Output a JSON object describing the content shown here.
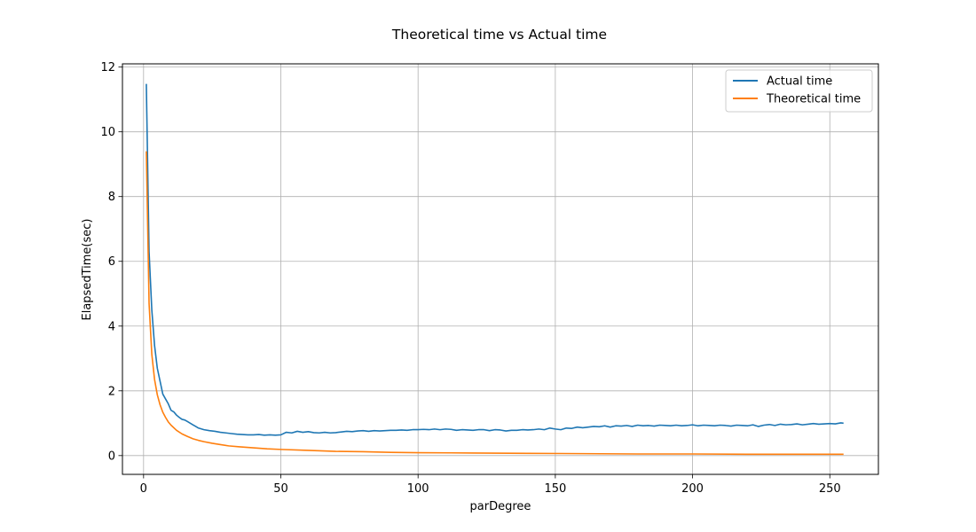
{
  "chart_data": {
    "type": "line",
    "title": "Theoretical time vs Actual time",
    "xlabel": "parDegree",
    "ylabel": "ElapsedTime(sec)",
    "xlim": [
      -7.7,
      267.7
    ],
    "ylim": [
      -0.58,
      12.1
    ],
    "xticks": [
      0,
      50,
      100,
      150,
      200,
      250
    ],
    "yticks": [
      0,
      2,
      4,
      6,
      8,
      10,
      12
    ],
    "grid": true,
    "legend": "top-right",
    "series": [
      {
        "name": "Actual time",
        "color": "#1f77b4",
        "x": [
          1,
          2,
          3,
          4,
          5,
          6,
          7,
          8,
          9,
          10,
          11,
          12,
          13,
          14,
          15,
          16,
          17,
          18,
          19,
          20,
          22,
          24,
          26,
          28,
          30,
          32,
          34,
          36,
          38,
          40,
          42,
          44,
          46,
          48,
          50,
          52,
          54,
          56,
          58,
          60,
          62,
          64,
          66,
          68,
          70,
          72,
          74,
          76,
          78,
          80,
          82,
          84,
          86,
          88,
          90,
          92,
          94,
          96,
          98,
          100,
          102,
          104,
          106,
          108,
          110,
          112,
          114,
          116,
          118,
          120,
          122,
          124,
          126,
          128,
          130,
          132,
          134,
          136,
          138,
          140,
          142,
          144,
          146,
          148,
          150,
          152,
          154,
          156,
          158,
          160,
          162,
          164,
          166,
          168,
          170,
          172,
          174,
          176,
          178,
          180,
          182,
          184,
          186,
          188,
          190,
          192,
          194,
          196,
          198,
          200,
          202,
          204,
          206,
          208,
          210,
          212,
          214,
          216,
          218,
          220,
          222,
          224,
          226,
          228,
          230,
          232,
          234,
          236,
          238,
          240,
          242,
          244,
          246,
          248,
          250,
          252,
          254,
          255
        ],
        "values": [
          11.48,
          6.3,
          4.5,
          3.4,
          2.7,
          2.3,
          1.9,
          1.75,
          1.6,
          1.4,
          1.35,
          1.25,
          1.18,
          1.12,
          1.1,
          1.05,
          1.0,
          0.95,
          0.9,
          0.85,
          0.8,
          0.77,
          0.75,
          0.72,
          0.7,
          0.68,
          0.66,
          0.65,
          0.64,
          0.64,
          0.65,
          0.63,
          0.64,
          0.63,
          0.64,
          0.72,
          0.7,
          0.75,
          0.72,
          0.74,
          0.71,
          0.7,
          0.72,
          0.7,
          0.71,
          0.73,
          0.75,
          0.74,
          0.76,
          0.77,
          0.75,
          0.77,
          0.76,
          0.77,
          0.78,
          0.78,
          0.79,
          0.78,
          0.8,
          0.8,
          0.81,
          0.8,
          0.82,
          0.8,
          0.82,
          0.81,
          0.78,
          0.8,
          0.79,
          0.78,
          0.8,
          0.8,
          0.77,
          0.8,
          0.79,
          0.76,
          0.78,
          0.78,
          0.8,
          0.79,
          0.8,
          0.82,
          0.8,
          0.85,
          0.82,
          0.8,
          0.85,
          0.84,
          0.88,
          0.86,
          0.88,
          0.9,
          0.89,
          0.92,
          0.88,
          0.92,
          0.91,
          0.93,
          0.9,
          0.94,
          0.92,
          0.93,
          0.91,
          0.94,
          0.93,
          0.92,
          0.94,
          0.92,
          0.93,
          0.95,
          0.92,
          0.94,
          0.93,
          0.92,
          0.94,
          0.93,
          0.91,
          0.94,
          0.93,
          0.92,
          0.95,
          0.9,
          0.94,
          0.96,
          0.93,
          0.97,
          0.95,
          0.96,
          0.98,
          0.95,
          0.97,
          0.99,
          0.97,
          0.98,
          0.99,
          0.98,
          1.01,
          1.0
        ]
      },
      {
        "name": "Theoretical time",
        "color": "#ff7f0e",
        "formula_constant": 9.4,
        "x": [
          1,
          2,
          3,
          4,
          5,
          6,
          7,
          8,
          9,
          10,
          12,
          14,
          16,
          18,
          20,
          22,
          25,
          28,
          31,
          35,
          40,
          45,
          50,
          60,
          70,
          80,
          90,
          100,
          120,
          140,
          160,
          180,
          200,
          220,
          240,
          255
        ],
        "values": [
          9.4,
          4.7,
          3.13,
          2.35,
          1.88,
          1.57,
          1.34,
          1.18,
          1.04,
          0.94,
          0.78,
          0.67,
          0.59,
          0.52,
          0.47,
          0.43,
          0.38,
          0.34,
          0.3,
          0.27,
          0.24,
          0.21,
          0.19,
          0.16,
          0.13,
          0.12,
          0.1,
          0.09,
          0.08,
          0.07,
          0.06,
          0.05,
          0.05,
          0.04,
          0.04,
          0.04
        ]
      }
    ]
  }
}
